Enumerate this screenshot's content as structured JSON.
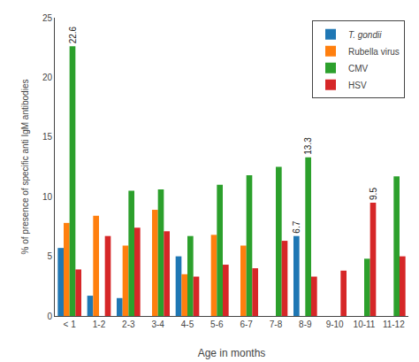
{
  "chart_data": {
    "type": "bar",
    "categories": [
      "< 1",
      "1-2",
      "2-3",
      "3-4",
      "4-5",
      "5-6",
      "6-7",
      "7-8",
      "8-9",
      "9-10",
      "10-11",
      "11-12"
    ],
    "series": [
      {
        "name": "T. gondii",
        "values": [
          5.7,
          1.7,
          1.5,
          0.0,
          5.0,
          0.0,
          0.0,
          0.0,
          6.7,
          0.0,
          0.0,
          0.0
        ]
      },
      {
        "name": "Rubella virus",
        "values": [
          7.8,
          8.4,
          5.9,
          8.9,
          3.5,
          6.8,
          5.9,
          0.0,
          0.0,
          0.0,
          0.0,
          0.0
        ]
      },
      {
        "name": "CMV",
        "values": [
          22.6,
          0.0,
          10.5,
          10.6,
          6.7,
          11.0,
          11.8,
          12.5,
          13.3,
          0.0,
          4.8,
          11.7
        ]
      },
      {
        "name": "HSV",
        "values": [
          3.9,
          6.7,
          7.4,
          7.1,
          3.3,
          4.3,
          4.0,
          6.3,
          3.3,
          3.8,
          9.5,
          5.0
        ]
      }
    ],
    "xlabel": "Age in months",
    "ylabel": "% of presence of specific anti IgM antibodies",
    "ylim": [
      0,
      25
    ],
    "yticks": [
      0,
      5,
      10,
      15,
      20,
      25
    ],
    "grid": false,
    "legend": "upper right",
    "annotations": [
      {
        "text": "22.6",
        "category": "< 1",
        "series": "CMV"
      },
      {
        "text": "13.3",
        "category": "8-9",
        "series": "CMV"
      },
      {
        "text": "6.7",
        "category": "8-9",
        "series": "T. gondii"
      },
      {
        "text": "9.5",
        "category": "10-11",
        "series": "HSV"
      }
    ]
  }
}
